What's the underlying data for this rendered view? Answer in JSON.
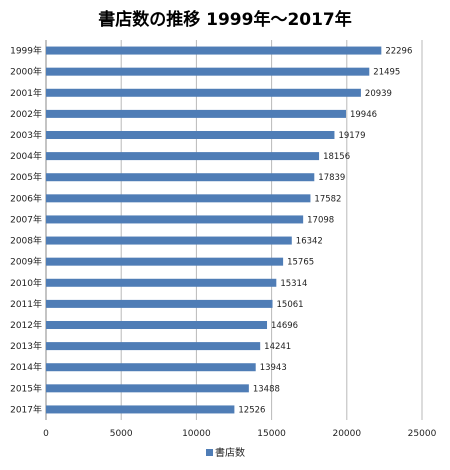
{
  "chart_data": {
    "type": "bar",
    "orientation": "horizontal",
    "title": "書店数の推移 1999年～2017年",
    "categories": [
      "1999年",
      "2000年",
      "2001年",
      "2002年",
      "2003年",
      "2004年",
      "2005年",
      "2006年",
      "2007年",
      "2008年",
      "2009年",
      "2010年",
      "2011年",
      "2012年",
      "2013年",
      "2014年",
      "2015年",
      "2017年"
    ],
    "series": [
      {
        "name": "書店数",
        "color": "#4f7db6",
        "values": [
          22296,
          21495,
          20939,
          19946,
          19179,
          18156,
          17839,
          17582,
          17098,
          16342,
          15765,
          15314,
          15061,
          14696,
          14241,
          13943,
          13488,
          12526
        ]
      }
    ],
    "xlim": [
      0,
      25000
    ],
    "xticks": [
      0,
      5000,
      10000,
      15000,
      20000,
      25000
    ],
    "grid": true,
    "legend_position": "bottom"
  }
}
